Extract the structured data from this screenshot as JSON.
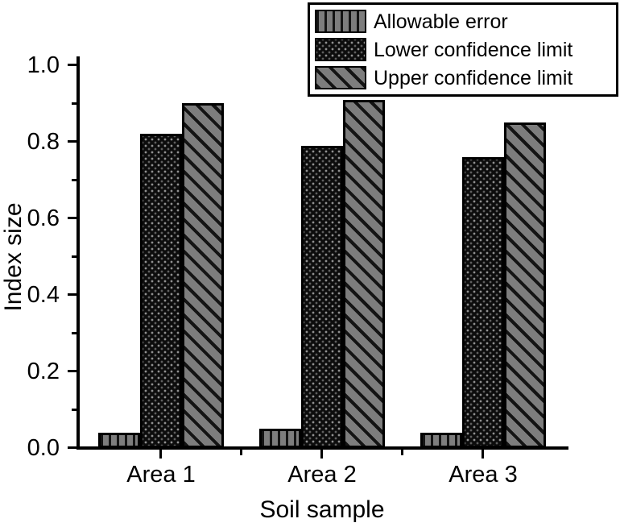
{
  "chart_data": {
    "type": "bar",
    "title": "",
    "xlabel": "Soil sample",
    "ylabel": "Index size",
    "ylim": [
      0.0,
      1.0
    ],
    "ytick_major_step": 0.2,
    "ytick_minor_step": 0.1,
    "ytick_labels": [
      "0.0",
      "0.2",
      "0.4",
      "0.6",
      "0.8",
      "1.0"
    ],
    "grid": false,
    "legend_position": "top-right",
    "categories": [
      "Area 1",
      "Area 2",
      "Area 3"
    ],
    "series": [
      {
        "name": "Allowable error",
        "pattern": "vertical-stripes",
        "values": [
          0.04,
          0.05,
          0.04
        ]
      },
      {
        "name": "Lower confidence limit",
        "pattern": "dense-dots",
        "values": [
          0.82,
          0.79,
          0.76
        ]
      },
      {
        "name": "Upper confidence limit",
        "pattern": "diagonal-stripes",
        "values": [
          0.9,
          0.91,
          0.85
        ]
      }
    ],
    "colors": {
      "bar_gray": "#7d7d7d",
      "bar_dark": "#0d0d0d",
      "hatch": "#141414",
      "axis": "#000000",
      "background": "#ffffff"
    }
  }
}
